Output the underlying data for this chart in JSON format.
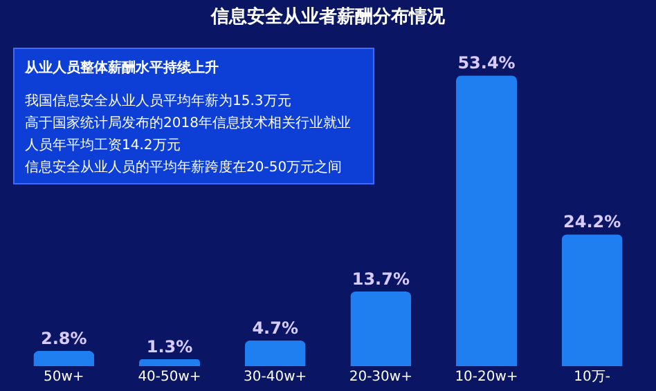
{
  "chart_data": {
    "type": "bar",
    "title": "信息安全从业者薪酬分布情况",
    "categories": [
      "50w+",
      "40-50w+",
      "30-40w+",
      "20-30w+",
      "10-20w+",
      "10万-"
    ],
    "values": [
      2.8,
      1.3,
      4.7,
      13.7,
      53.4,
      24.2
    ],
    "color": "#1f7ff0",
    "value_labels": [
      "2.8%",
      "1.3%",
      "4.7%",
      "13.7%",
      "53.4%",
      "24.2%"
    ],
    "annotations": [
      "从业人员整体薪酬水平持续上升",
      "我国信息安全从业人员平均年薪为15.3万元",
      "高于国家统计局发布的2018年信息技术相关行业就业",
      "人员年平均工资14.2万元",
      "信息安全从业人员的平均年薪跨度在20-50万元之间"
    ]
  }
}
